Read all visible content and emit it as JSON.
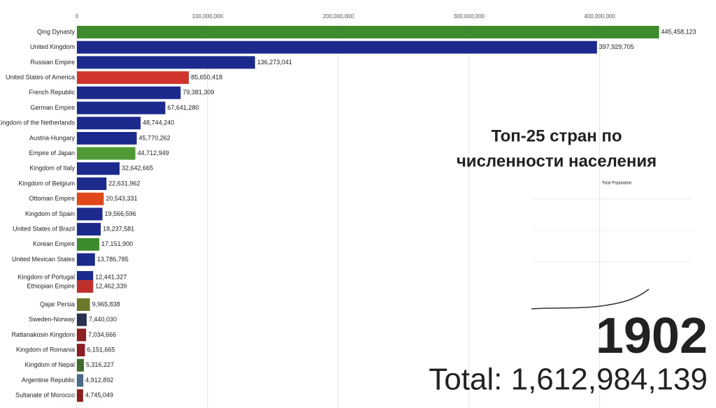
{
  "chart_data": {
    "type": "bar",
    "orientation": "horizontal",
    "title_lines": [
      "Топ-25 стран по",
      "численности населения"
    ],
    "inset_title": "Total Population",
    "year": "1902",
    "total_label": "Total: 1,612,984,139",
    "categories": [
      "Qing Dynasty",
      "United Kingdom",
      "Russian Empire",
      "United States of America",
      "French Republic",
      "German Empire",
      "Kingdom of the Netherlands",
      "Austria-Hungary",
      "Empire of Japan",
      "Kingdom of Italy",
      "Kingdom of Belgium",
      "Ottoman Empire",
      "Kingdom of Spain",
      "United States of Brazil",
      "Korean Empire",
      "United Mexican States",
      "Kingdom of Portugal",
      "Ethiopian Empire",
      "Qajar Persia",
      "Sweden-Norway",
      "Rattanakosin Kingdom",
      "Kingdom of Romania",
      "Kingdom of Nepal",
      "Argentine Republic",
      "Sultanate of Morocco"
    ],
    "values": [
      445458123,
      397929705,
      136273041,
      85650418,
      79381309,
      67641280,
      48744240,
      45770262,
      44712949,
      32642665,
      22631962,
      20543331,
      19566596,
      18237581,
      17151900,
      13786785,
      12441327,
      12462339,
      9965838,
      7440030,
      7034666,
      6151665,
      5316227,
      4912892,
      4745049
    ],
    "value_labels": [
      "445,458,123",
      "397,929,705",
      "136,273,041",
      "85,650,418",
      "79,381,309",
      "67,641,280",
      "48,744,240",
      "45,770,262",
      "44,712,949",
      "32,642,665",
      "22,631,962",
      "20,543,331",
      "19,566,596",
      "18,237,581",
      "17,151,900",
      "13,786,785",
      "12,441,327",
      "12,462,339",
      "9,965,838",
      "7,440,030",
      "7,034,666",
      "6,151,665",
      "5,316,227",
      "4,912,892",
      "4,745,049"
    ],
    "colors": [
      "#3d8b2c",
      "#1c2a8e",
      "#1c2a8e",
      "#d1342c",
      "#1c2a8e",
      "#1c2a8e",
      "#1c2a8e",
      "#1c2a8e",
      "#4f9a34",
      "#1c2a8e",
      "#1c2a8e",
      "#e0481c",
      "#1c2a8e",
      "#1c2a8e",
      "#3d8b2c",
      "#1c2a8e",
      "#1c2a8e",
      "#c0302a",
      "#6b7a2a",
      "#2a3050",
      "#8a2020",
      "#8a1e24",
      "#3d6b2c",
      "#4a6a8a",
      "#8a1e1e"
    ],
    "xlim": [
      0,
      489000000
    ],
    "xticks": [
      0,
      {
        "value": 100000000,
        "label": "100,000,000"
      },
      {
        "value": 200000000,
        "label": "200,000,000"
      },
      {
        "value": 300000000,
        "label": "300,000,000"
      },
      {
        "value": 400000000,
        "label": "400,000,000"
      }
    ],
    "grid": true
  }
}
